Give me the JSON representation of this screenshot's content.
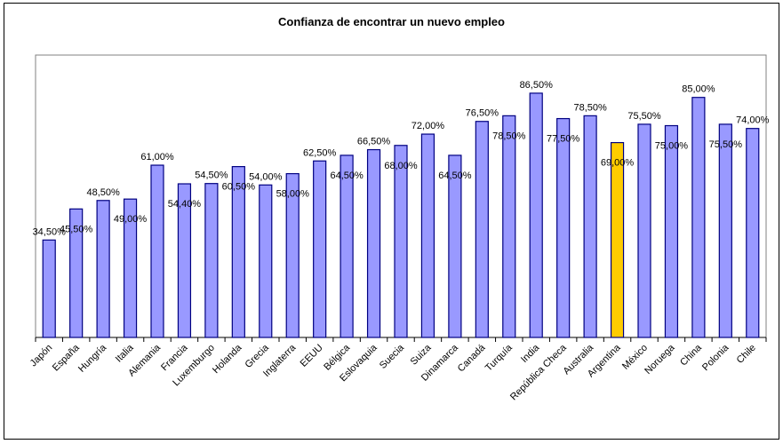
{
  "chart_data": {
    "type": "bar",
    "title": "Confianza de encontrar un nuevo empleo",
    "xlabel": "",
    "ylabel": "",
    "ylim": [
      0,
      100
    ],
    "grid": false,
    "legend": "none",
    "categories": [
      "Japón",
      "España",
      "Hungría",
      "Italia",
      "Alemania",
      "Francia",
      "Luxemburgo",
      "Holanda",
      "Grecia",
      "Inglaterra",
      "EEUU",
      "Bélgica",
      "Eslovaquia",
      "Suecia",
      "Suiza",
      "Dinamarca",
      "Canadá",
      "Turquía",
      "India",
      "República Checa",
      "Australia",
      "Argentina",
      "México",
      "Noruega",
      "China",
      "Polonia",
      "Chile"
    ],
    "values": [
      34.5,
      45.5,
      48.5,
      49.0,
      61.0,
      54.4,
      54.5,
      60.5,
      54.0,
      58.0,
      62.5,
      64.5,
      66.5,
      68.0,
      72.0,
      64.5,
      76.5,
      78.5,
      86.5,
      77.5,
      78.5,
      69.0,
      75.5,
      75.0,
      85.0,
      75.5,
      74.0
    ],
    "data_labels": [
      "34,50%",
      "45,50%",
      "48,50%",
      "49,00%",
      "61,00%",
      "54,40%",
      "54,50%",
      "60,50%",
      "54,00%",
      "58,00%",
      "62,50%",
      "64,50%",
      "66,50%",
      "68,00%",
      "72,00%",
      "64,50%",
      "76,50%",
      "78,50%",
      "86,50%",
      "77,50%",
      "78,50%",
      "69,00%",
      "75,50%",
      "75,00%",
      "85,00%",
      "75,50%",
      "74,00%"
    ],
    "highlight_category": "Argentina",
    "colors": {
      "bar": "#9999FF",
      "highlight": "#FFCC00",
      "bar_outline": "#000080"
    }
  }
}
